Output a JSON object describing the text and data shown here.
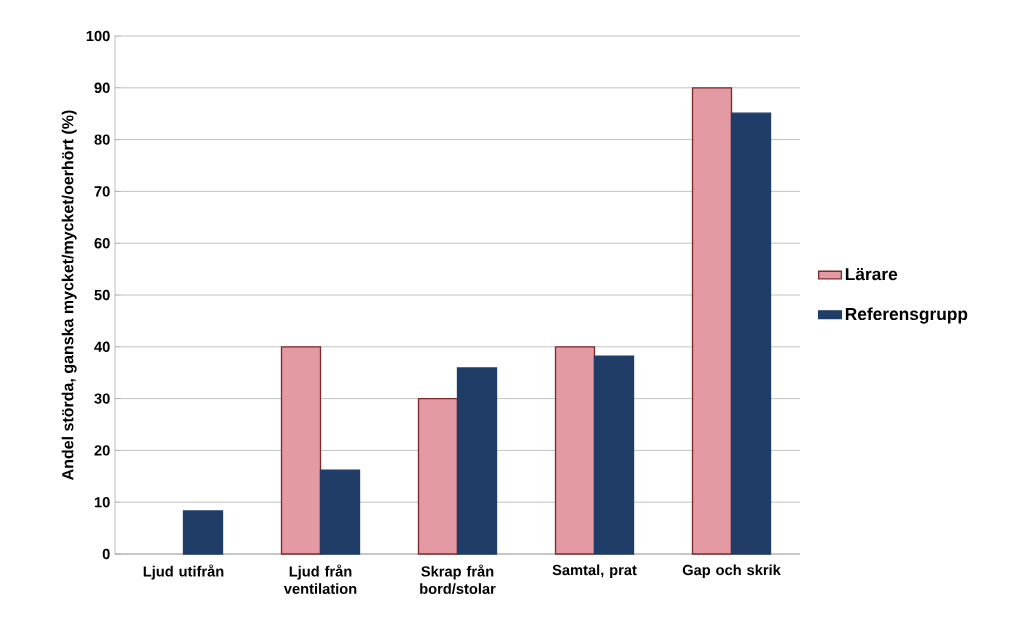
{
  "chart_data": {
    "type": "bar",
    "ylabel": "Andel störda, ganska mycket/mycket/oerhört (%)",
    "categories": [
      "Ljud utifrån",
      "Ljud från ventilation",
      "Skrap från bord/stolar",
      "Samtal, prat",
      "Gap och skrik"
    ],
    "series": [
      {
        "name": "Lärare",
        "color": "#e39aa3",
        "values": [
          null,
          40,
          30,
          40,
          90
        ]
      },
      {
        "name": "Referensgrupp",
        "color": "#1f3d66",
        "values": [
          8.3,
          16.2,
          35.9,
          38.2,
          85.1
        ]
      }
    ],
    "ylim": [
      0,
      100
    ],
    "yticks": [
      0,
      10,
      20,
      30,
      40,
      50,
      60,
      70,
      80,
      90,
      100
    ],
    "grid": "y",
    "legend": "right"
  }
}
